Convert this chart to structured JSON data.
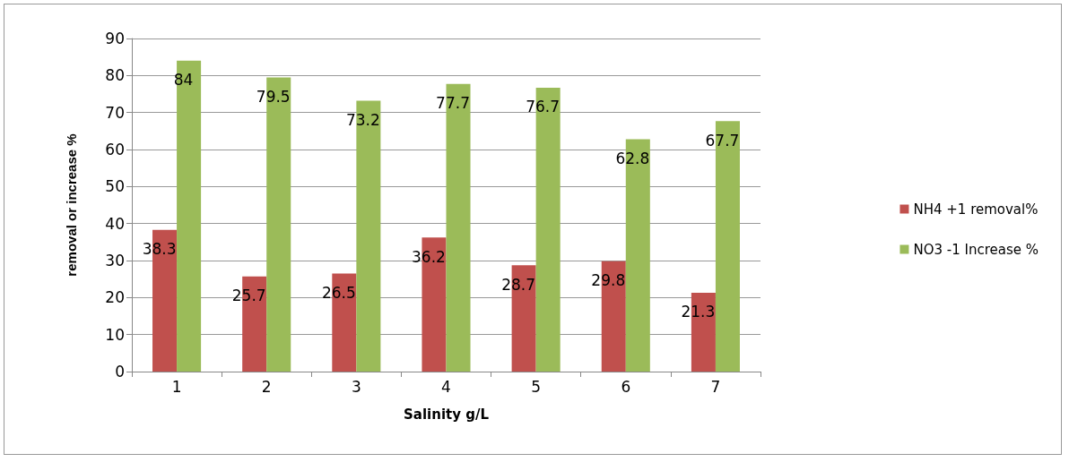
{
  "chart_data": {
    "type": "bar",
    "xlabel": "Salinity g/L",
    "ylabel": "removal or increase %",
    "categories": [
      "1",
      "2",
      "3",
      "4",
      "5",
      "6",
      "7"
    ],
    "series": [
      {
        "name": "NH4 +1 removal%",
        "color": "#c0504d",
        "values": [
          38.3,
          25.7,
          26.5,
          36.2,
          28.7,
          29.8,
          21.3
        ]
      },
      {
        "name": "NO3 -1 Increase %",
        "color": "#9bbb59",
        "values": [
          84,
          79.5,
          73.2,
          77.7,
          76.7,
          62.8,
          67.7
        ]
      }
    ],
    "ylim": [
      0,
      90
    ],
    "yticks": [
      0,
      10,
      20,
      30,
      40,
      50,
      60,
      70,
      80,
      90
    ],
    "grid": "y",
    "legend": "right",
    "data_labels": true
  }
}
